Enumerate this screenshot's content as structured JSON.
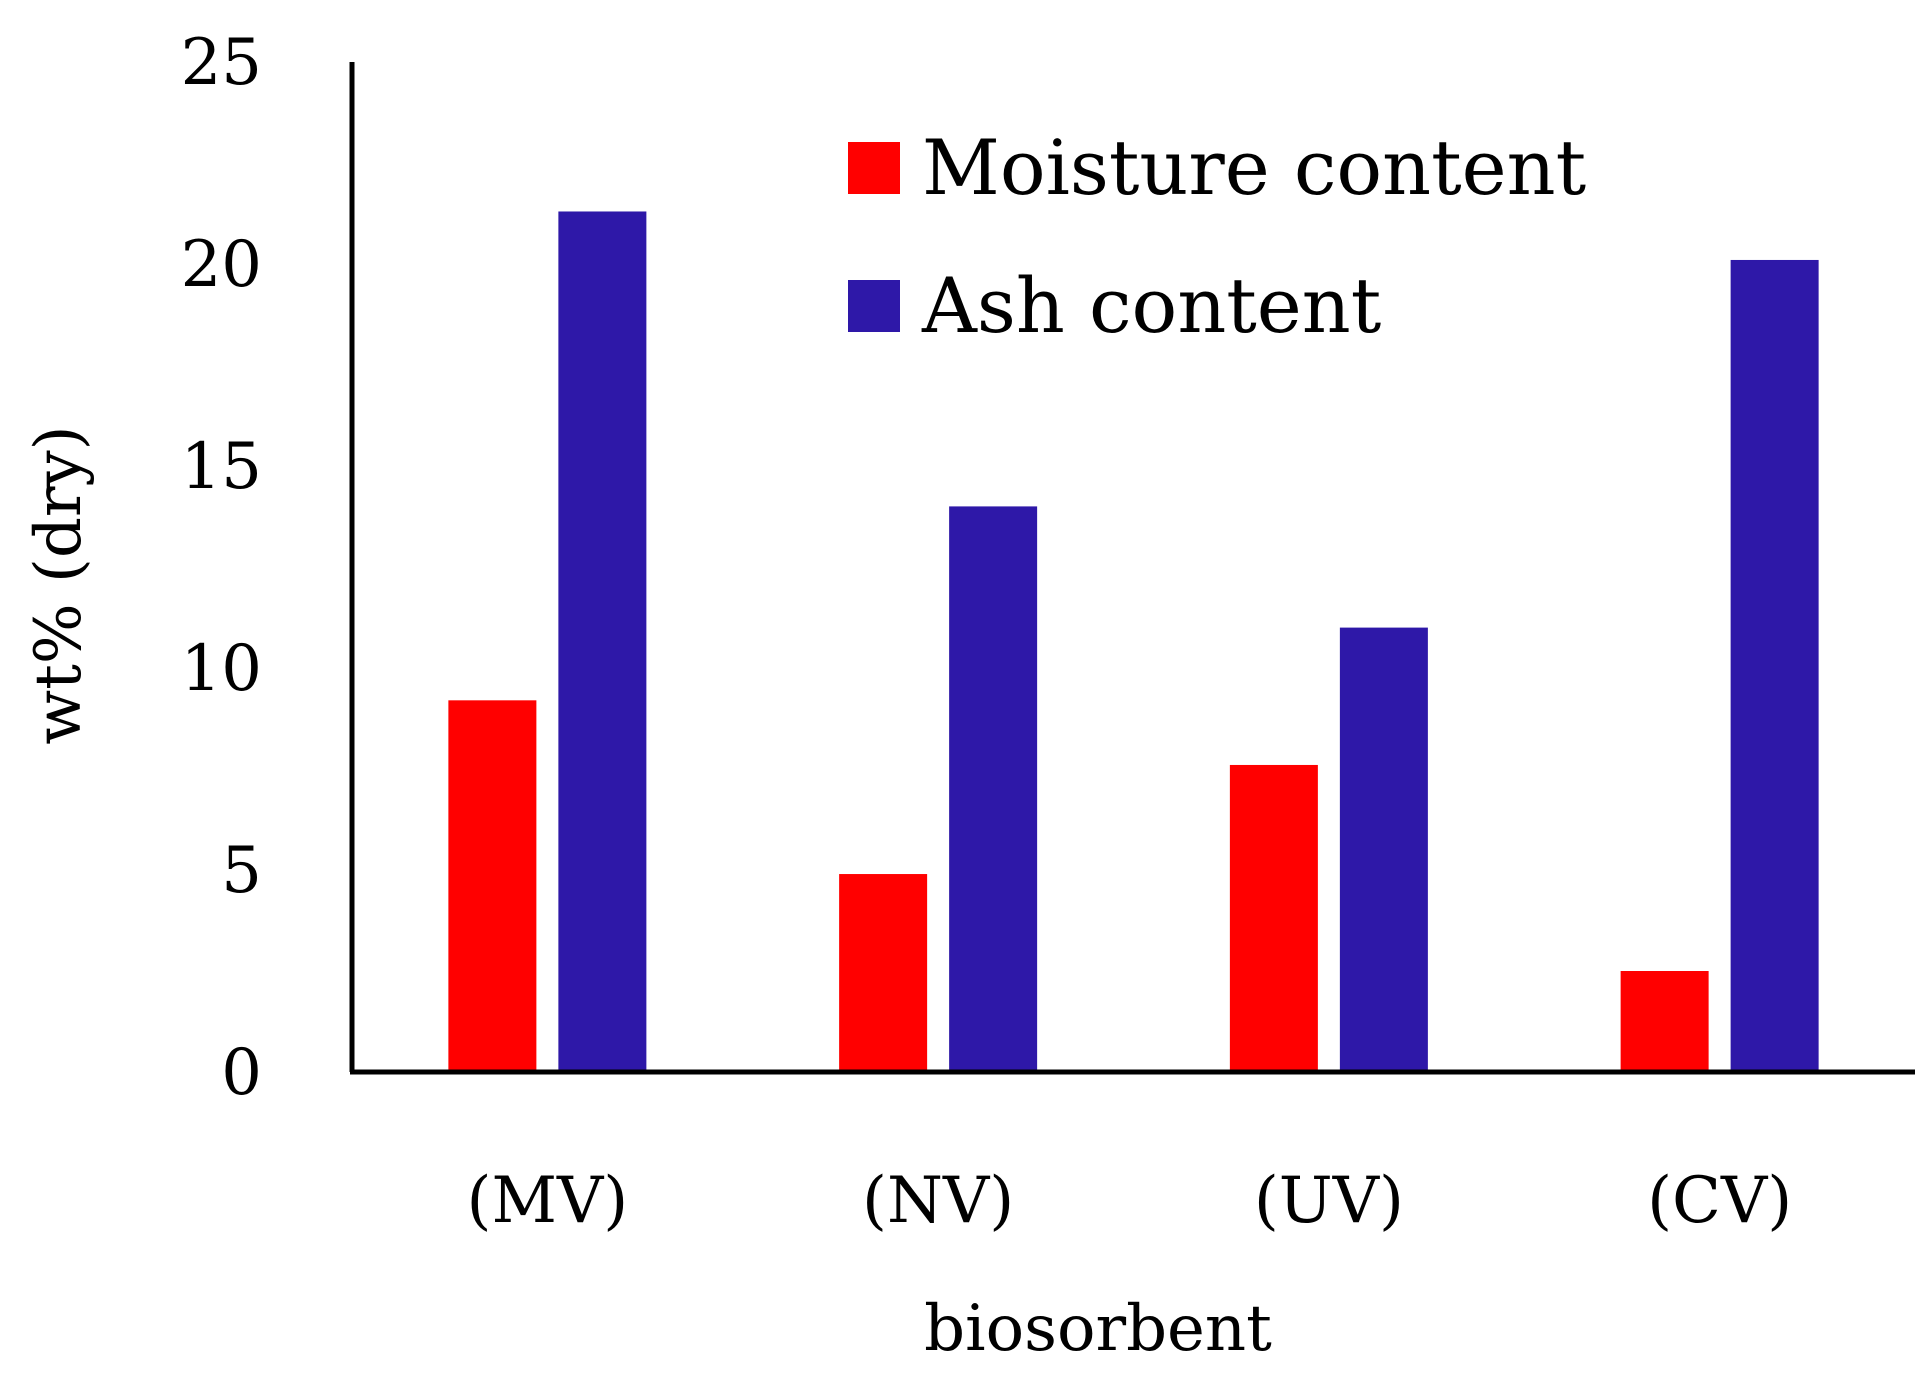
{
  "chart_data": {
    "type": "bar",
    "title": "",
    "xlabel": "biosorbent",
    "ylabel": "wt% (dry)",
    "categories": [
      "(MV)",
      "(NV)",
      "(UV)",
      "(CV)"
    ],
    "series": [
      {
        "name": "Moisture content",
        "color": "#ff0000",
        "values": [
          9.2,
          4.9,
          7.6,
          2.5
        ]
      },
      {
        "name": "Ash content",
        "color": "#2e18a8",
        "values": [
          21.3,
          14.0,
          11.0,
          20.1
        ]
      }
    ],
    "ylim": [
      0,
      25
    ],
    "yticks": [
      "0",
      "5",
      "10",
      "15",
      "20",
      "25"
    ],
    "grid": false,
    "legend_position": "top-right"
  }
}
